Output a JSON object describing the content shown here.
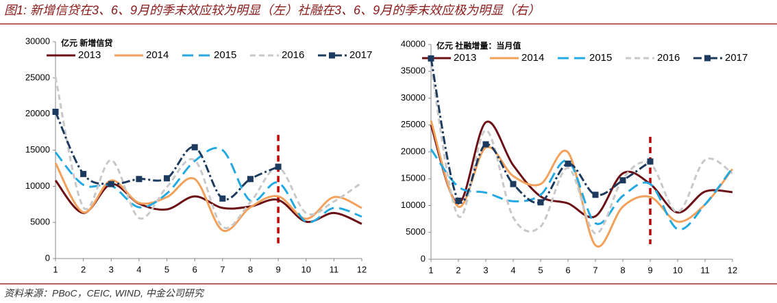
{
  "title": "图1: 新增信贷在3、6、9月的季末效应较为明显（左）社融在3、6、9月的季末效应极为明显（右）",
  "source": "资料来源：PBoC，CEIC, WIND, 中金公司研究",
  "chart_data": [
    {
      "type": "line",
      "y_label": "亿元 新增信贷",
      "x": [
        1,
        2,
        3,
        4,
        5,
        6,
        7,
        8,
        9,
        10,
        11,
        12
      ],
      "xlim": [
        1,
        12
      ],
      "xticks": [
        1,
        2,
        3,
        4,
        5,
        6,
        7,
        8,
        9,
        10,
        11,
        12
      ],
      "ylim": [
        0,
        30000
      ],
      "yticks": [
        0,
        5000,
        10000,
        15000,
        20000,
        25000,
        30000
      ],
      "reference_line_x": 9,
      "reference_line_color": "#c00000",
      "series": [
        {
          "name": "2013",
          "color": "#6b0f14",
          "dash": "solid",
          "values": [
            10800,
            6300,
            10300,
            7600,
            6800,
            8600,
            7000,
            7200,
            8100,
            5100,
            6300,
            4800
          ]
        },
        {
          "name": "2014",
          "color": "#f2a05a",
          "dash": "solid",
          "values": [
            13200,
            6400,
            10800,
            7700,
            8500,
            11000,
            3900,
            7100,
            8600,
            5500,
            8500,
            7000
          ]
        },
        {
          "name": "2015",
          "color": "#22a9e1",
          "dash": "dash",
          "values": [
            14700,
            10200,
            10100,
            7100,
            9000,
            13500,
            15000,
            8000,
            10500,
            5100,
            7000,
            5800
          ]
        },
        {
          "name": "2016",
          "color": "#c8c8c8",
          "dash": "shortdash",
          "values": [
            25100,
            7100,
            13600,
            5600,
            9900,
            13600,
            4400,
            7800,
            12600,
            6300,
            7900,
            10500
          ]
        },
        {
          "name": "2017",
          "color": "#1c3a5e",
          "dash": "dashdot",
          "marker": "square",
          "values": [
            20300,
            11700,
            10300,
            11000,
            11100,
            15400,
            8300,
            11000,
            12700,
            null,
            null,
            null
          ]
        }
      ]
    },
    {
      "type": "line",
      "y_label": "亿元 社融增量：当月值",
      "x": [
        1,
        2,
        3,
        4,
        5,
        6,
        7,
        8,
        9,
        10,
        11,
        12
      ],
      "xlim": [
        1,
        12
      ],
      "xticks": [
        1,
        2,
        3,
        4,
        5,
        6,
        7,
        8,
        9,
        10,
        11,
        12
      ],
      "ylim": [
        0,
        40000
      ],
      "yticks": [
        0,
        5000,
        10000,
        15000,
        20000,
        25000,
        30000,
        35000,
        40000
      ],
      "reference_line_x": 9,
      "reference_line_color": "#c00000",
      "series": [
        {
          "name": "2013",
          "color": "#6b0f14",
          "dash": "solid",
          "values": [
            25000,
            10400,
            25500,
            17500,
            11700,
            10400,
            8000,
            16000,
            14000,
            8700,
            12600,
            12500
          ]
        },
        {
          "name": "2014",
          "color": "#f2a05a",
          "dash": "solid",
          "values": [
            25800,
            9800,
            20800,
            15500,
            14000,
            19900,
            2600,
            9800,
            11600,
            7000,
            10200,
            16800
          ]
        },
        {
          "name": "2015",
          "color": "#22a9e1",
          "dash": "dash",
          "values": [
            20500,
            13500,
            12400,
            10800,
            12000,
            18300,
            6700,
            11800,
            14000,
            5600,
            10200,
            17000
          ]
        },
        {
          "name": "2016",
          "color": "#c8c8c8",
          "dash": "shortdash",
          "values": [
            36000,
            8000,
            24000,
            7800,
            6100,
            17000,
            4800,
            15000,
            17800,
            8800,
            18500,
            16000
          ]
        },
        {
          "name": "2017",
          "color": "#1c3a5e",
          "dash": "dashdot",
          "marker": "square",
          "values": [
            37400,
            10900,
            21400,
            14000,
            10600,
            17800,
            12000,
            14700,
            18200,
            null,
            null,
            null
          ]
        }
      ]
    }
  ]
}
